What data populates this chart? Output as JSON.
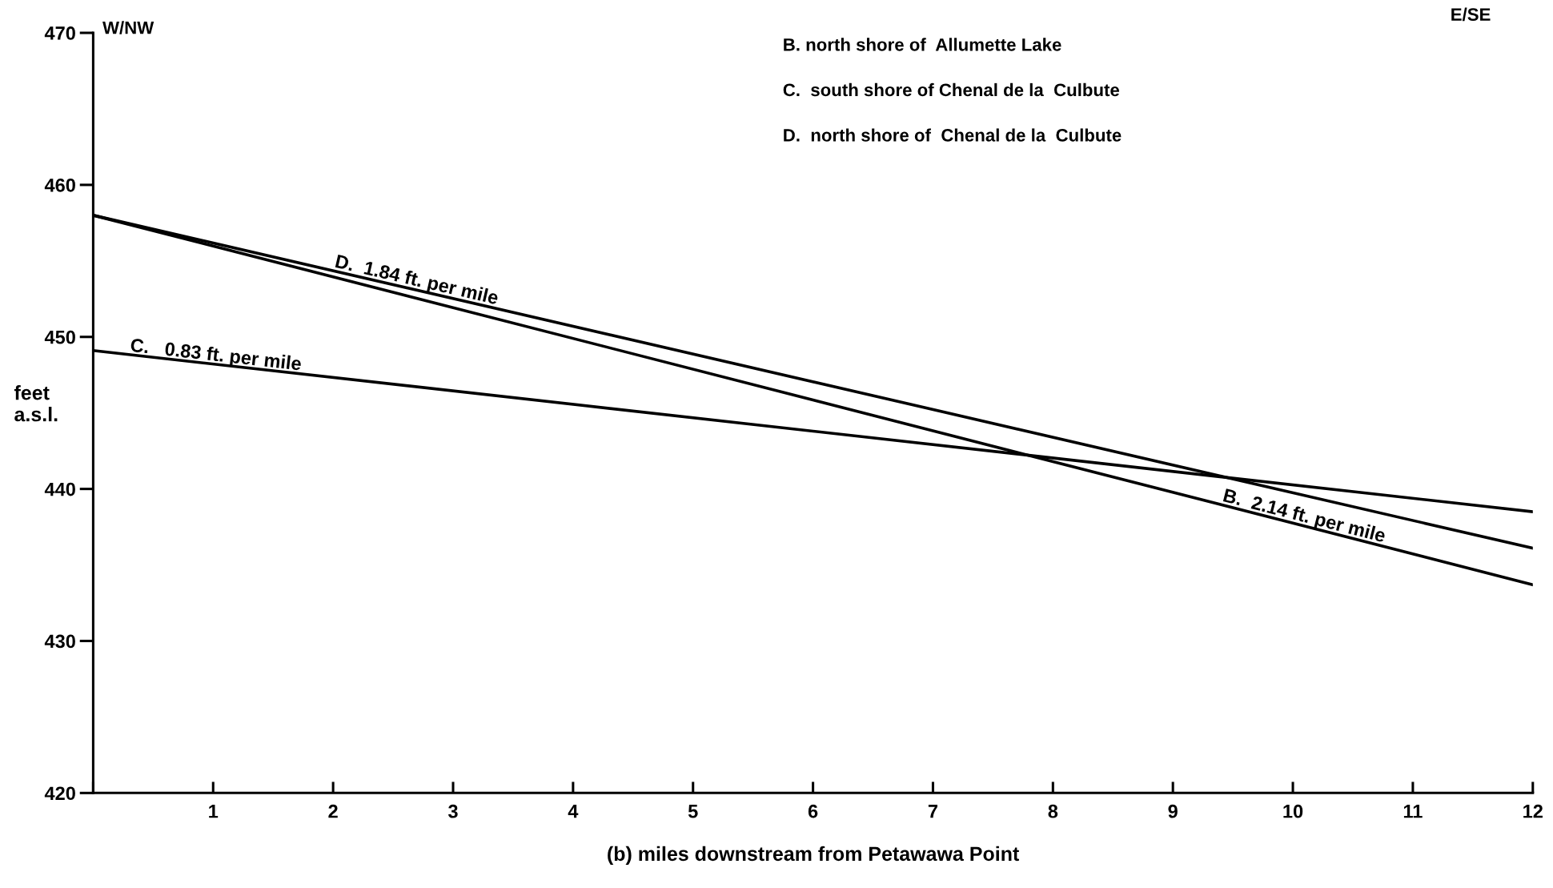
{
  "chart_data": {
    "type": "line",
    "xlabel": "(b) miles downstream from Petawawa Point",
    "ylabel": "feet\na.s.l.",
    "x": [
      0,
      12
    ],
    "series": [
      {
        "color": "#000000",
        "values": [
          458.0,
          433.7
        ]
      },
      {
        "color": "#000000",
        "values": [
          449.1,
          438.5
        ]
      },
      {
        "color": "#000000",
        "values": [
          458.0,
          436.1
        ]
      }
    ],
    "xlim": [
      0,
      12
    ],
    "xticks": [
      {
        "value": 0,
        "label": null
      },
      1,
      2,
      3,
      4,
      5,
      6,
      7,
      8,
      9,
      10,
      11,
      12
    ],
    "ylim": [
      420,
      470
    ],
    "yticks": [
      420,
      430,
      440,
      450,
      460,
      470
    ],
    "grid": false,
    "legend": false,
    "marker": "none",
    "line_style": "solid",
    "annotations": [
      "W/NW",
      "E/SE",
      "B. north shore of  Allumette Lake",
      "C.  south shore of Chenal de la  Culbute",
      "D.  north shore of  Chenal de la  Culbute",
      {
        "text": "D.  1.84 ft. per mile",
        "x": 2.0,
        "y": 454.35
      },
      {
        "text": "C.   0.83 ft. per mile",
        "x": 0.3,
        "y": 448.8
      },
      {
        "text": "B.  2.14 ft. per mile",
        "x": 9.4,
        "y": 438.96
      }
    ]
  }
}
